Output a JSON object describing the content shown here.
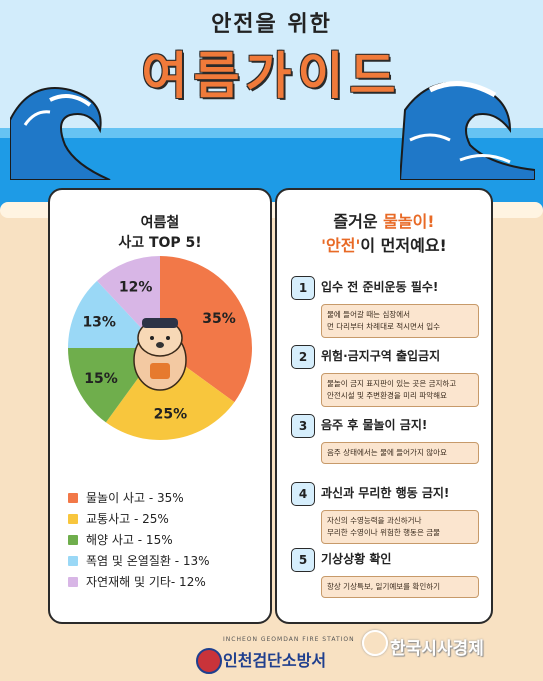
{
  "header": {
    "subtitle": "안전을 위한",
    "title": "여름가이드"
  },
  "left_card": {
    "title_line1": "여름철",
    "title_line2": "사고 TOP 5!"
  },
  "chart_data": {
    "type": "pie",
    "title": "여름철 사고 TOP 5!",
    "categories": [
      "물놀이 사고",
      "교통사고",
      "해양 사고",
      "폭염 및 온열질환",
      "자연재해 및 기타"
    ],
    "values": [
      35,
      25,
      15,
      13,
      12
    ],
    "slice_labels": [
      "35%",
      "25%",
      "15%",
      "13%",
      "12%"
    ],
    "colors": [
      "#f27848",
      "#f8c63d",
      "#6fae4c",
      "#9ad8f6",
      "#d8b6e6"
    ],
    "legend_position": "bottom"
  },
  "legend": [
    {
      "label": "물놀이 사고 - 35%",
      "color": "#f27848"
    },
    {
      "label": "교통사고 - 25%",
      "color": "#f8c63d"
    },
    {
      "label": "해양 사고 - 15%",
      "color": "#6fae4c"
    },
    {
      "label": "폭염 및 온열질환 - 13%",
      "color": "#9ad8f6"
    },
    {
      "label": "자연재해 및 기타- 12%",
      "color": "#d8b6e6"
    }
  ],
  "right_card": {
    "title_line1_pre": "즐거운 ",
    "title_line1_em": "물놀이!",
    "title_line2_em": "'안전'",
    "title_line2_post": "이 먼저예요!",
    "rules": [
      {
        "num": "1",
        "title": "입수 전 준비운동 필수!",
        "desc_line1": "물에 들어갈 때는 심장에서",
        "desc_line2": "먼 다리부터 차례대로 적시면서 입수"
      },
      {
        "num": "2",
        "title": "위험·금지구역 출입금지",
        "desc_line1": "물놀이 금지 표지판이 있는 곳은 금지하고",
        "desc_line2": "안전시설 및 주변환경을 미리 파악해요"
      },
      {
        "num": "3",
        "title": "음주 후 물놀이 금지!",
        "desc_line1": "음주 상태에서는 물에 들어가지 않아요",
        "desc_line2": ""
      },
      {
        "num": "4",
        "title": "과신과 무리한 행동 금지!",
        "desc_line1": "자신의 수영능력을 과신하거나",
        "desc_line2": "무리한 수영이나 위험한 행동은 금물"
      },
      {
        "num": "5",
        "title": "기상상황 확인",
        "desc_line1": "항상 기상특보, 일기예보를 확인하기",
        "desc_line2": ""
      }
    ]
  },
  "footer": {
    "station_english": "INCHEON GEOMDAN FIRE STATION",
    "station_name": "인천검단소방서",
    "brand": "한국시사경제"
  }
}
